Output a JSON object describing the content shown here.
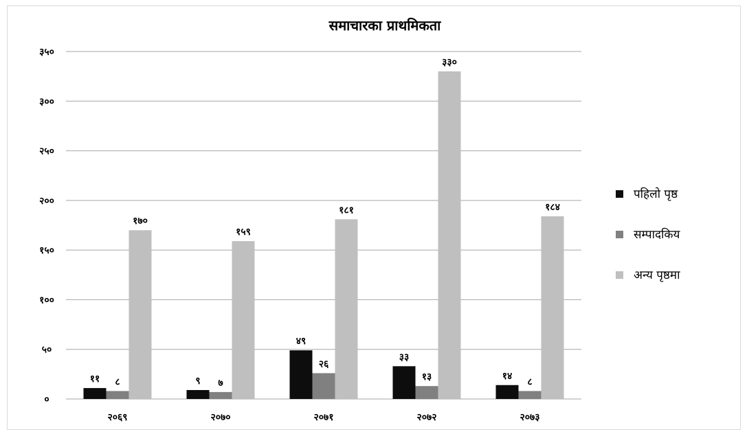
{
  "chart_data": {
    "type": "bar",
    "title": "समाचारका प्राथमिकता",
    "categories": [
      "२०६९",
      "२०७०",
      "२०७१",
      "२०७२",
      "२०७३"
    ],
    "series": [
      {
        "name": "पहिलो पृष्ठ",
        "color": "#0d0d0d",
        "values": [
          11,
          9,
          49,
          33,
          14
        ],
        "labels": [
          "११",
          "९",
          "४९",
          "३३",
          "१४"
        ]
      },
      {
        "name": "सम्पादकिय",
        "color": "#808080",
        "values": [
          8,
          7,
          26,
          13,
          8
        ],
        "labels": [
          "८",
          "७",
          "२६",
          "१३",
          "८"
        ]
      },
      {
        "name": "अन्य पृष्ठमा",
        "color": "#bfbfbf",
        "values": [
          170,
          159,
          181,
          330,
          184
        ],
        "labels": [
          "१७०",
          "१५९",
          "१८१",
          "३३०",
          "१८४"
        ]
      }
    ],
    "ylim": [
      0,
      350
    ],
    "yticks": [
      0,
      50,
      100,
      150,
      200,
      250,
      300,
      350
    ],
    "ytick_labels": [
      "०",
      "५०",
      "१००",
      "१५०",
      "२००",
      "२५०",
      "३००",
      "३५०"
    ],
    "grid": true,
    "legend": "right"
  }
}
